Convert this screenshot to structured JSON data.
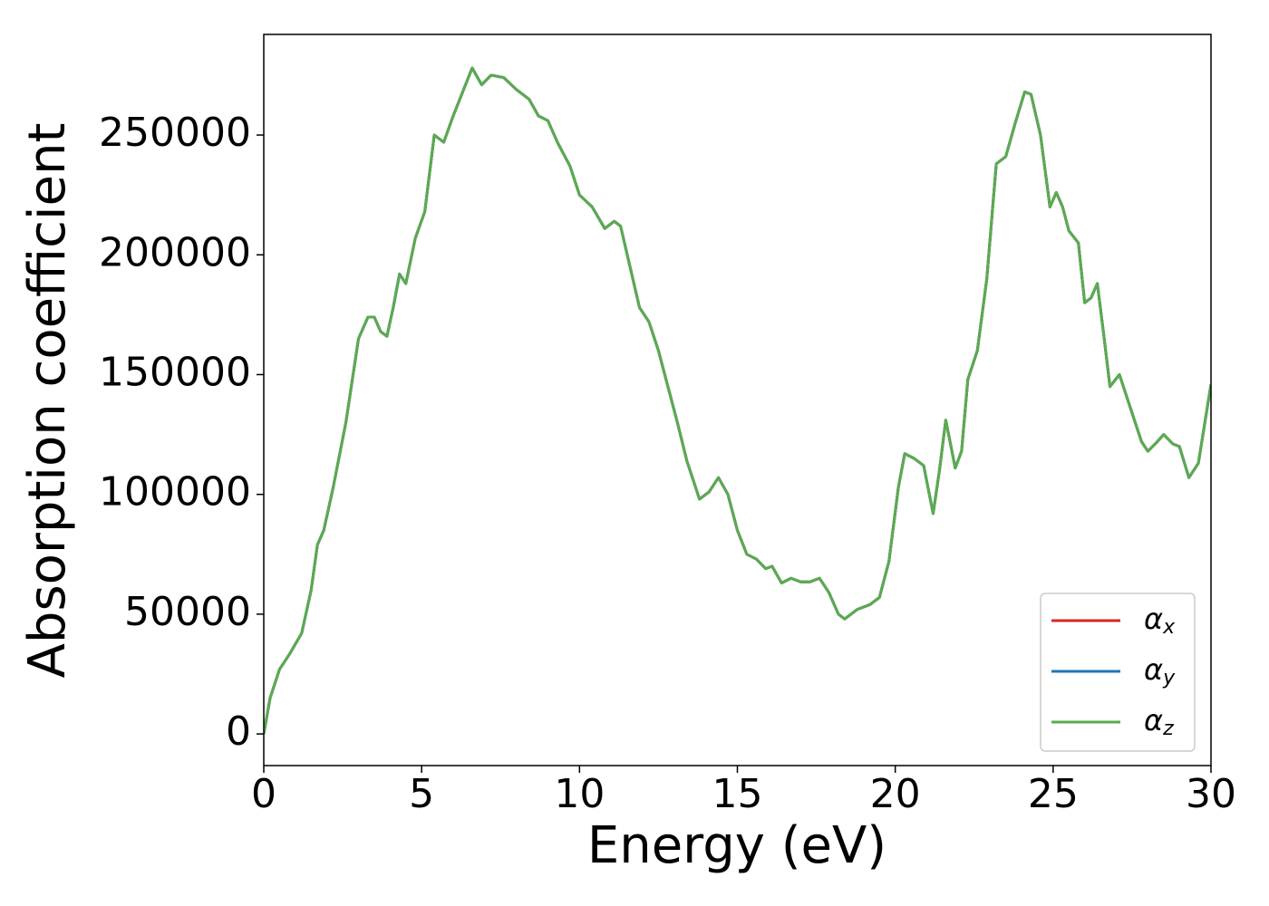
{
  "chart_data": {
    "type": "line",
    "x_label": "Energy (eV)",
    "y_label": "Absorption coefficient",
    "x": [
      0,
      0.2,
      0.5,
      0.8,
      1.2,
      1.5,
      1.7,
      1.9,
      2.2,
      2.6,
      3.0,
      3.3,
      3.5,
      3.7,
      3.9,
      4.1,
      4.3,
      4.5,
      4.8,
      5.1,
      5.4,
      5.7,
      6.0,
      6.3,
      6.6,
      6.9,
      7.2,
      7.6,
      8.0,
      8.4,
      8.7,
      9.0,
      9.3,
      9.7,
      10.0,
      10.4,
      10.8,
      11.1,
      11.3,
      11.6,
      11.9,
      12.2,
      12.5,
      12.8,
      13.1,
      13.4,
      13.8,
      14.1,
      14.4,
      14.7,
      15.0,
      15.3,
      15.6,
      15.9,
      16.1,
      16.4,
      16.7,
      17.0,
      17.3,
      17.6,
      17.9,
      18.2,
      18.4,
      18.8,
      19.2,
      19.5,
      19.8,
      20.1,
      20.3,
      20.6,
      20.9,
      21.2,
      21.4,
      21.6,
      21.9,
      22.1,
      22.3,
      22.6,
      22.9,
      23.2,
      23.5,
      23.8,
      24.1,
      24.3,
      24.6,
      24.9,
      25.1,
      25.3,
      25.5,
      25.8,
      26.0,
      26.2,
      26.4,
      26.6,
      26.8,
      27.1,
      27.3,
      27.6,
      27.8,
      28.0,
      28.3,
      28.5,
      28.8,
      29.0,
      29.3,
      29.6,
      30.0
    ],
    "series": [
      {
        "name": "αx",
        "color": "#d62728",
        "values": [
          0,
          15000,
          27000,
          33000,
          42000,
          60000,
          79000,
          85000,
          103000,
          130000,
          165000,
          174000,
          174000,
          168000,
          166000,
          178000,
          192000,
          188000,
          207000,
          218000,
          250000,
          247000,
          258000,
          268000,
          278000,
          271000,
          275000,
          274000,
          269000,
          265000,
          258000,
          256000,
          247000,
          237000,
          225000,
          220000,
          211000,
          214000,
          212000,
          195000,
          178000,
          172000,
          160000,
          145000,
          130000,
          114000,
          98000,
          101000,
          107000,
          100000,
          85000,
          75000,
          73000,
          69000,
          70000,
          63000,
          65000,
          63500,
          63500,
          65000,
          59000,
          50000,
          48000,
          52000,
          54000,
          57000,
          72000,
          103000,
          117000,
          115000,
          112000,
          92000,
          110000,
          131000,
          111000,
          118000,
          148000,
          160000,
          190000,
          238000,
          241000,
          255000,
          268000,
          267000,
          250000,
          220000,
          226000,
          220000,
          210000,
          205000,
          180000,
          182000,
          188000,
          167000,
          145000,
          150000,
          142000,
          130000,
          122000,
          118000,
          122000,
          125000,
          121000,
          120000,
          107000,
          113000,
          146000
        ]
      },
      {
        "name": "αy",
        "color": "#1f77b4",
        "values": [
          0,
          15000,
          27000,
          33000,
          42000,
          60000,
          79000,
          85000,
          103000,
          130000,
          165000,
          174000,
          174000,
          168000,
          166000,
          178000,
          192000,
          188000,
          207000,
          218000,
          250000,
          247000,
          258000,
          268000,
          278000,
          271000,
          275000,
          274000,
          269000,
          265000,
          258000,
          256000,
          247000,
          237000,
          225000,
          220000,
          211000,
          214000,
          212000,
          195000,
          178000,
          172000,
          160000,
          145000,
          130000,
          114000,
          98000,
          101000,
          107000,
          100000,
          85000,
          75000,
          73000,
          69000,
          70000,
          63000,
          65000,
          63500,
          63500,
          65000,
          59000,
          50000,
          48000,
          52000,
          54000,
          57000,
          72000,
          103000,
          117000,
          115000,
          112000,
          92000,
          110000,
          131000,
          111000,
          118000,
          148000,
          160000,
          190000,
          238000,
          241000,
          255000,
          268000,
          267000,
          250000,
          220000,
          226000,
          220000,
          210000,
          205000,
          180000,
          182000,
          188000,
          167000,
          145000,
          150000,
          142000,
          130000,
          122000,
          118000,
          122000,
          125000,
          121000,
          120000,
          107000,
          113000,
          146000
        ]
      },
      {
        "name": "αz",
        "color": "#5aab4f",
        "values": [
          0,
          15000,
          27000,
          33000,
          42000,
          60000,
          79000,
          85000,
          103000,
          130000,
          165000,
          174000,
          174000,
          168000,
          166000,
          178000,
          192000,
          188000,
          207000,
          218000,
          250000,
          247000,
          258000,
          268000,
          278000,
          271000,
          275000,
          274000,
          269000,
          265000,
          258000,
          256000,
          247000,
          237000,
          225000,
          220000,
          211000,
          214000,
          212000,
          195000,
          178000,
          172000,
          160000,
          145000,
          130000,
          114000,
          98000,
          101000,
          107000,
          100000,
          85000,
          75000,
          73000,
          69000,
          70000,
          63000,
          65000,
          63500,
          63500,
          65000,
          59000,
          50000,
          48000,
          52000,
          54000,
          57000,
          72000,
          103000,
          117000,
          115000,
          112000,
          92000,
          110000,
          131000,
          111000,
          118000,
          148000,
          160000,
          190000,
          238000,
          241000,
          255000,
          268000,
          267000,
          250000,
          220000,
          226000,
          220000,
          210000,
          205000,
          180000,
          182000,
          188000,
          167000,
          145000,
          150000,
          142000,
          130000,
          122000,
          118000,
          122000,
          125000,
          121000,
          120000,
          107000,
          113000,
          146000
        ]
      }
    ],
    "xlim": [
      0,
      30
    ],
    "xticks": [
      0,
      5,
      10,
      15,
      20,
      25,
      30
    ],
    "ylim": [
      -13200,
      292000
    ],
    "yticks": [
      0,
      50000,
      100000,
      150000,
      200000,
      250000
    ],
    "grid": false,
    "legend": "lower right"
  }
}
